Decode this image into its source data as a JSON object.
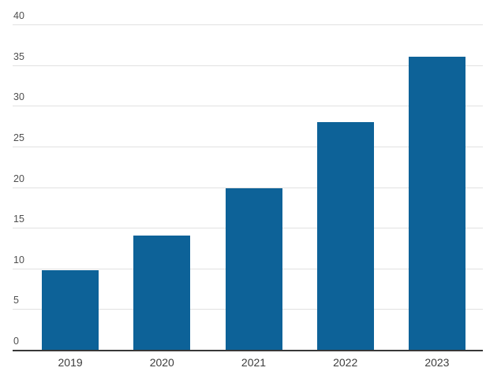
{
  "chart_data": {
    "type": "bar",
    "title": "",
    "xlabel": "",
    "ylabel": "",
    "categories": [
      "2019",
      "2020",
      "2021",
      "2022",
      "2023"
    ],
    "values": [
      9.8,
      14,
      19.9,
      28,
      36
    ],
    "series": [
      {
        "name": "value",
        "values": [
          9.8,
          14,
          19.9,
          28,
          36
        ]
      }
    ],
    "ylim": [
      0,
      40
    ],
    "yticks": [
      0,
      5,
      10,
      15,
      20,
      25,
      30,
      35,
      40
    ],
    "ytick_step": 5,
    "grid": true,
    "legend_position": "none",
    "colors": {
      "bar": "#0d6298",
      "gridline": "#e1e1e1",
      "axis_line": "#383838",
      "y_tick_label": "#4f4f4f",
      "x_tick_label": "#3c3c3c",
      "background": "#ffffff"
    }
  }
}
